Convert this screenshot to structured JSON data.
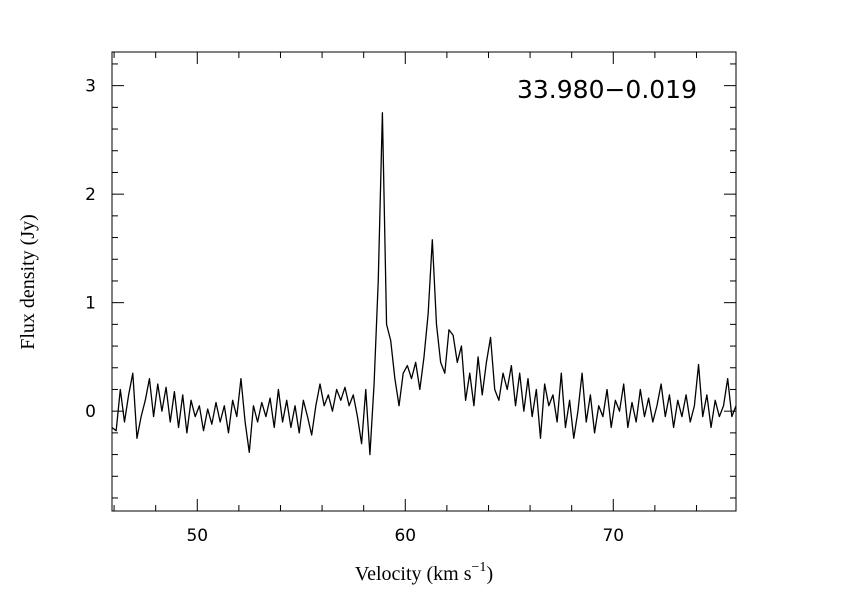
{
  "chart_data": {
    "type": "line",
    "title": "33.980−0.019",
    "xlabel": [
      "Velocity (km s",
      "−1",
      ")"
    ],
    "ylabel": "Flux density (Jy)",
    "color": "#000000",
    "xlim": [
      45.9,
      75.9
    ],
    "xticks": [
      50,
      60,
      70
    ],
    "xticks_minor": [
      46,
      48,
      52,
      54,
      56,
      58,
      62,
      64,
      66,
      68,
      72,
      74
    ],
    "ylim": [
      -0.92,
      3.31
    ],
    "yticks": [
      0,
      1,
      2,
      3
    ],
    "yticks_minor": [
      -0.8,
      -0.6,
      -0.4,
      -0.2,
      0.2,
      0.4,
      0.6,
      0.8,
      1.2,
      1.4,
      1.6,
      1.8,
      2.2,
      2.4,
      2.6,
      2.8,
      3.2
    ],
    "x": [
      45.9,
      46.1,
      46.3,
      46.5,
      46.7,
      46.9,
      47.1,
      47.3,
      47.5,
      47.7,
      47.9,
      48.1,
      48.3,
      48.5,
      48.7,
      48.9,
      49.1,
      49.3,
      49.5,
      49.7,
      49.9,
      50.1,
      50.3,
      50.5,
      50.7,
      50.9,
      51.1,
      51.3,
      51.5,
      51.7,
      51.9,
      52.1,
      52.3,
      52.5,
      52.7,
      52.9,
      53.1,
      53.3,
      53.5,
      53.7,
      53.9,
      54.1,
      54.3,
      54.5,
      54.7,
      54.9,
      55.1,
      55.3,
      55.5,
      55.7,
      55.9,
      56.1,
      56.3,
      56.5,
      56.7,
      56.9,
      57.1,
      57.3,
      57.5,
      57.7,
      57.9,
      58.1,
      58.3,
      58.5,
      58.7,
      58.9,
      59.1,
      59.3,
      59.5,
      59.7,
      59.9,
      60.1,
      60.3,
      60.5,
      60.7,
      60.9,
      61.1,
      61.3,
      61.5,
      61.7,
      61.9,
      62.1,
      62.3,
      62.5,
      62.7,
      62.9,
      63.1,
      63.3,
      63.5,
      63.7,
      63.9,
      64.1,
      64.3,
      64.5,
      64.7,
      64.9,
      65.1,
      65.3,
      65.5,
      65.7,
      65.9,
      66.1,
      66.3,
      66.5,
      66.7,
      66.9,
      67.1,
      67.3,
      67.5,
      67.7,
      67.9,
      68.1,
      68.3,
      68.5,
      68.7,
      68.9,
      69.1,
      69.3,
      69.5,
      69.7,
      69.9,
      70.1,
      70.3,
      70.5,
      70.7,
      70.9,
      71.1,
      71.3,
      71.5,
      71.7,
      71.9,
      72.1,
      72.3,
      72.5,
      72.7,
      72.9,
      73.1,
      73.3,
      73.5,
      73.7,
      73.9,
      74.1,
      74.3,
      74.5,
      74.7,
      74.9,
      75.1,
      75.3,
      75.5,
      75.7,
      75.9
    ],
    "values": [
      -0.15,
      -0.18,
      0.2,
      -0.1,
      0.15,
      0.35,
      -0.25,
      -0.05,
      0.1,
      0.3,
      -0.05,
      0.25,
      0.0,
      0.22,
      -0.1,
      0.18,
      -0.15,
      0.15,
      -0.2,
      0.1,
      -0.05,
      0.05,
      -0.18,
      0.02,
      -0.12,
      0.08,
      -0.1,
      0.05,
      -0.2,
      0.1,
      -0.05,
      0.3,
      -0.1,
      -0.38,
      0.05,
      -0.1,
      0.08,
      -0.05,
      0.12,
      -0.15,
      0.2,
      -0.1,
      0.1,
      -0.15,
      0.05,
      -0.2,
      0.1,
      -0.05,
      -0.22,
      0.05,
      0.25,
      0.05,
      0.15,
      0.0,
      0.2,
      0.1,
      0.22,
      0.05,
      0.15,
      -0.05,
      -0.3,
      0.2,
      -0.4,
      0.25,
      1.2,
      2.75,
      0.8,
      0.65,
      0.3,
      0.05,
      0.35,
      0.42,
      0.3,
      0.45,
      0.2,
      0.5,
      0.9,
      1.58,
      0.8,
      0.45,
      0.35,
      0.75,
      0.7,
      0.45,
      0.6,
      0.1,
      0.35,
      0.05,
      0.5,
      0.15,
      0.45,
      0.68,
      0.2,
      0.1,
      0.35,
      0.2,
      0.42,
      0.05,
      0.35,
      0.0,
      0.3,
      -0.05,
      0.2,
      -0.25,
      0.25,
      0.05,
      0.15,
      -0.1,
      0.35,
      -0.15,
      0.1,
      -0.25,
      0.0,
      0.35,
      -0.1,
      0.15,
      -0.2,
      0.05,
      -0.05,
      0.2,
      -0.15,
      0.1,
      0.0,
      0.25,
      -0.15,
      0.08,
      -0.1,
      0.2,
      -0.05,
      0.12,
      -0.1,
      0.05,
      0.25,
      -0.05,
      0.15,
      -0.15,
      0.1,
      -0.05,
      0.15,
      -0.1,
      0.05,
      0.43,
      -0.05,
      0.15,
      -0.15,
      0.1,
      -0.05,
      0.05,
      0.3,
      -0.05,
      0.05
    ]
  }
}
